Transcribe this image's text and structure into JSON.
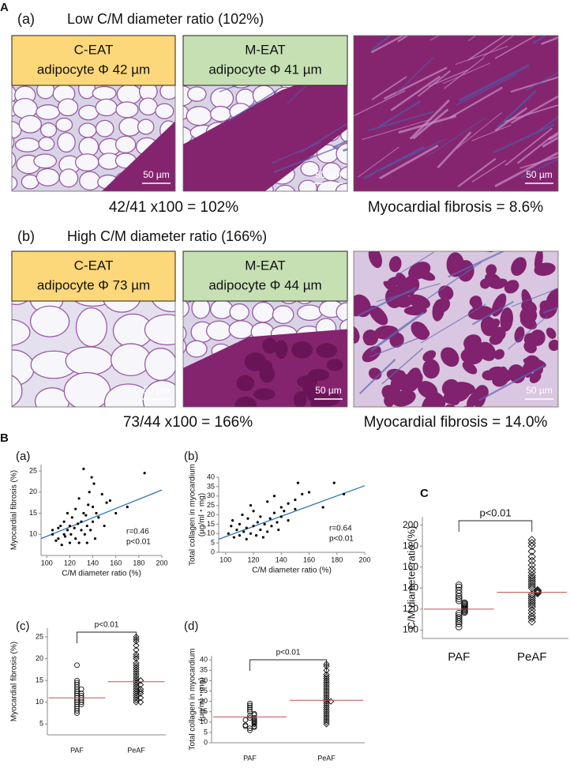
{
  "figure_A": {
    "label": "A",
    "rows": [
      {
        "title": "(a)",
        "subtitle": "Low C/M diameter ratio (102%)",
        "panels": [
          {
            "name": "C-EAT",
            "detail": "adipocyte Φ 42 µm",
            "scale": "50 µm"
          },
          {
            "name": "M-EAT",
            "detail": "adipocyte Φ 41 µm",
            "scale": "50 µm"
          },
          {
            "scale": "50 µm"
          }
        ],
        "captions": [
          "42/41 x100 = 102%",
          "Myocardial fibrosis = 8.6%"
        ]
      },
      {
        "title": "(b)",
        "subtitle": "High C/M diameter ratio (166%)",
        "panels": [
          {
            "name": "C-EAT",
            "detail": "adipocyte Φ 73 µm",
            "scale": "50 µm"
          },
          {
            "name": "M-EAT",
            "detail": "adipocyte Φ 44 µm",
            "scale": "50 µm"
          },
          {
            "scale": "50 µm"
          }
        ],
        "captions": [
          "73/44 x100 = 166%",
          "Myocardial fibrosis = 14.0%"
        ]
      }
    ]
  },
  "figure_B_label": "B",
  "figure_C_label": "C",
  "chart_data": [
    {
      "type": "scatter",
      "panel": "(a)",
      "xlabel": "C/M diameter ratio (%)",
      "ylabel": [
        "Myocardial fibrosis (%)"
      ],
      "x": [
        105,
        105,
        108,
        110,
        110,
        112,
        113,
        115,
        115,
        116,
        118,
        118,
        120,
        120,
        121,
        122,
        124,
        125,
        125,
        127,
        128,
        128,
        130,
        130,
        132,
        132,
        133,
        134,
        135,
        135,
        136,
        137,
        138,
        139,
        140,
        140,
        141,
        142,
        143,
        145,
        148,
        150,
        152,
        155,
        160,
        170,
        185
      ],
      "y": [
        11,
        10,
        8.5,
        11.5,
        9,
        12,
        7.5,
        10,
        13,
        9.5,
        11,
        15,
        8,
        12,
        10,
        14,
        11.5,
        9,
        16,
        12.5,
        8,
        18.5,
        13,
        11,
        25.5,
        15,
        10,
        14.5,
        12,
        8,
        17,
        20,
        11,
        23.5,
        16.5,
        13,
        22,
        9,
        15,
        14,
        19.5,
        12,
        17.5,
        18,
        15,
        16.5,
        24.5
      ],
      "xlim": [
        95,
        200
      ],
      "xticks": [
        100,
        120,
        140,
        160,
        180,
        200
      ],
      "ylim": [
        5,
        26.5
      ],
      "yticks": [
        10,
        15,
        20,
        25
      ],
      "color": "#000000",
      "fit": {
        "x": [
          95,
          200
        ],
        "y": [
          9,
          20.5
        ]
      },
      "fit_color": "#2e75b6",
      "annotations": [
        "r=0.46",
        "p<0.01"
      ]
    },
    {
      "type": "scatter",
      "panel": "(b)",
      "xlabel": "C/M diameter ratio (%)",
      "ylabel": [
        "Total collagen in myocardium",
        "(µg/ml・mg)"
      ],
      "x": [
        102,
        104,
        105,
        106,
        108,
        110,
        110,
        112,
        113,
        115,
        115,
        116,
        118,
        118,
        120,
        120,
        122,
        123,
        125,
        125,
        127,
        128,
        130,
        130,
        132,
        133,
        135,
        135,
        137,
        138,
        140,
        140,
        142,
        145,
        145,
        150,
        150,
        152,
        155,
        160,
        170,
        178,
        185
      ],
      "y": [
        10,
        14,
        17,
        8,
        12,
        15,
        9,
        20,
        11,
        13,
        7,
        18,
        25,
        10,
        14,
        22,
        9,
        16,
        12,
        19,
        8,
        15,
        27,
        11,
        18,
        14,
        21,
        30,
        16,
        12,
        19,
        24,
        22,
        26,
        17,
        28,
        23,
        37,
        31,
        32,
        24,
        37,
        31
      ],
      "xlim": [
        95,
        200
      ],
      "xticks": [
        100,
        120,
        140,
        160,
        180,
        200
      ],
      "ylim": [
        0,
        40
      ],
      "yticks": [
        0,
        5,
        10,
        15,
        20,
        25,
        30,
        35,
        40
      ],
      "color": "#000000",
      "fit": {
        "x": [
          95,
          200
        ],
        "y": [
          7,
          35.5
        ]
      },
      "fit_color": "#2e75b6",
      "annotations": [
        "r=0.64",
        "p<0.01"
      ]
    },
    {
      "type": "dotplot",
      "panel": "(c)",
      "ylabel": [
        "Myocardial fibrosis (%)"
      ],
      "categories": [
        "PAF",
        "PeAF"
      ],
      "values": [
        [
          7.5,
          8,
          8.5,
          9,
          9.5,
          9.5,
          10,
          10,
          10.5,
          10.5,
          11,
          11,
          11.5,
          11.5,
          12,
          12,
          12.5,
          13,
          13,
          13.5,
          14,
          14.5,
          15,
          18.5
        ],
        [
          10,
          10,
          10.5,
          11,
          11,
          11.5,
          12,
          12,
          12.5,
          12.5,
          13,
          13,
          13.5,
          14,
          14,
          14.5,
          15,
          15,
          15.5,
          16,
          16.5,
          17,
          17.5,
          18,
          18.5,
          19,
          20,
          20.5,
          21,
          22,
          23,
          24,
          24.5,
          25
        ]
      ],
      "markers": [
        "circle",
        "diamond"
      ],
      "means": [
        11,
        14.7
      ],
      "mean_color": "#c0504d",
      "ylim": [
        2.5,
        27
      ],
      "yticks": [
        5,
        10,
        15,
        20,
        25
      ],
      "annotation": "p<0.01"
    },
    {
      "type": "dotplot",
      "panel": "(d)",
      "ylabel": [
        "Total collagen in myocardium",
        "(µg/ml・mg)"
      ],
      "categories": [
        "PAF",
        "PeAF"
      ],
      "values": [
        [
          6,
          7,
          7.5,
          8,
          8,
          8.5,
          9,
          9.5,
          10,
          10.5,
          11,
          11,
          12,
          12,
          13,
          13.5,
          14,
          15,
          16,
          17,
          18,
          19
        ],
        [
          9,
          10,
          11,
          12,
          13,
          14,
          15,
          16,
          17,
          18,
          19,
          20,
          20,
          21,
          22,
          23,
          24,
          25,
          26,
          27,
          28,
          29,
          30,
          31,
          32,
          33,
          35,
          37,
          38
        ]
      ],
      "markers": [
        "circle",
        "diamond"
      ],
      "means": [
        12.5,
        20.5
      ],
      "mean_color": "#c0504d",
      "ylim": [
        0,
        42
      ],
      "yticks": [
        0,
        5,
        10,
        15,
        20,
        25,
        30,
        35,
        40
      ],
      "annotation": "p<0.01"
    },
    {
      "type": "dotplot",
      "ylabel": [
        "C/M diameter ratio (%)"
      ],
      "categories": [
        "PAF",
        "PeAF"
      ],
      "values": [
        [
          103,
          106,
          108,
          110,
          112,
          114,
          116,
          117,
          118,
          119,
          120,
          121,
          122,
          123,
          124,
          125,
          126,
          128,
          130,
          132,
          135,
          138,
          141,
          143
        ],
        [
          108,
          111,
          113,
          116,
          119,
          122,
          124,
          126,
          128,
          130,
          132,
          134,
          135,
          136,
          137,
          138,
          140,
          142,
          144,
          146,
          148,
          150,
          152,
          155,
          158,
          162,
          166,
          170,
          175,
          180,
          183,
          186
        ]
      ],
      "markers": [
        "circle",
        "diamond"
      ],
      "means": [
        120,
        136
      ],
      "mean_color": "#c0504d",
      "ylim": [
        92,
        208
      ],
      "yticks": [
        100,
        120,
        140,
        160,
        180,
        200
      ],
      "annotation": "p<0.01"
    }
  ]
}
